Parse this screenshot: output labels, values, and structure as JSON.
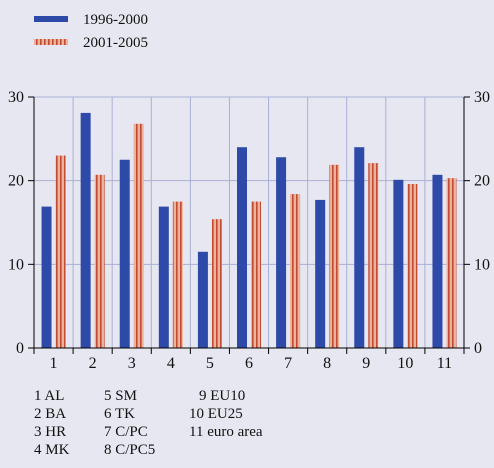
{
  "chart_data": {
    "type": "bar",
    "categories": [
      "1",
      "2",
      "3",
      "4",
      "5",
      "6",
      "7",
      "8",
      "9",
      "10",
      "11"
    ],
    "series": [
      {
        "name": "1996-2000",
        "values": [
          16.9,
          28.1,
          22.5,
          16.9,
          11.5,
          24.0,
          22.8,
          17.7,
          24.0,
          20.1,
          20.7
        ],
        "color": "#2e4aa8"
      },
      {
        "name": "2001-2005",
        "values": [
          23.0,
          20.7,
          26.8,
          17.5,
          15.4,
          17.5,
          18.4,
          21.9,
          22.1,
          19.6,
          20.3
        ],
        "color": "#e8a58b",
        "stripe_color": "#b83a2a"
      }
    ],
    "ylim": [
      0,
      30
    ],
    "yticks": [
      "0",
      "10",
      "20",
      "30"
    ],
    "grid": true,
    "legend_position": "top-left",
    "category_key": [
      [
        "1 AL",
        "2 BA",
        "3 HR",
        "4 MK"
      ],
      [
        "5 SM",
        "6 TK",
        "7 C/PC",
        "8 C/PC5"
      ],
      [
        "9 EU10",
        "10 EU25",
        "11 euro area"
      ]
    ]
  },
  "colors": {
    "background": "#e7e7f1",
    "plot_background": "#e7e7f1",
    "grid": "#aab0d6",
    "axis": "#000000"
  }
}
